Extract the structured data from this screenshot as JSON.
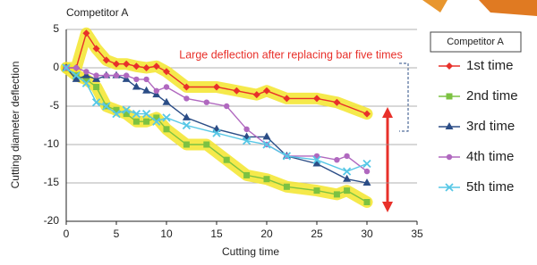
{
  "chart_data": {
    "type": "line",
    "title": "Competitor A",
    "annotation": "Large deflection after replacing bar five times",
    "legend_title": "Competitor A",
    "x_label": "Cutting time",
    "y_label": "Cutting diameter deflection",
    "xlim": [
      0,
      35
    ],
    "xticks": [
      0,
      5,
      10,
      15,
      20,
      25,
      30,
      35
    ],
    "ylim": [
      -20,
      5
    ],
    "yticks": [
      5,
      0,
      -5,
      -10,
      -15,
      -20
    ],
    "grid": true,
    "series": [
      {
        "name": "1st time",
        "color": "#e8302a",
        "marker": "diamond",
        "highlight": "#f3e52c",
        "x": [
          0,
          1,
          2,
          3,
          4,
          5,
          6,
          7,
          8,
          9,
          10,
          12,
          15,
          17,
          19,
          20,
          22,
          25,
          27,
          30
        ],
        "values": [
          0,
          0,
          4.5,
          2.5,
          1,
          0.5,
          0.5,
          0.2,
          0,
          0.2,
          -0.5,
          -2.5,
          -2.5,
          -3,
          -3.5,
          -3,
          -4,
          -4,
          -4.5,
          -6
        ]
      },
      {
        "name": "2nd time",
        "color": "#7cc242",
        "marker": "square",
        "highlight": "#f3e52c",
        "x": [
          0,
          1,
          2,
          3,
          4,
          5,
          6,
          7,
          8,
          9,
          10,
          12,
          14,
          16,
          18,
          20,
          22,
          25,
          27,
          28,
          30
        ],
        "values": [
          0,
          -1,
          -1.5,
          -2.5,
          -5,
          -5.5,
          -6,
          -7,
          -7,
          -6.5,
          -8,
          -10,
          -10,
          -12,
          -14,
          -14.5,
          -15.5,
          -16,
          -16.5,
          -16,
          -17.5
        ]
      },
      {
        "name": "3rd time",
        "color": "#2b4d86",
        "marker": "triangle",
        "x": [
          0,
          1,
          2,
          3,
          4,
          5,
          6,
          7,
          8,
          9,
          10,
          12,
          15,
          18,
          20,
          22,
          25,
          28,
          30
        ],
        "values": [
          0,
          -1.5,
          -1,
          -1.5,
          -1,
          -1,
          -1.5,
          -2.5,
          -3,
          -3.5,
          -4.5,
          -6.5,
          -8,
          -9,
          -9,
          -11.5,
          -12.5,
          -14.5,
          -15
        ]
      },
      {
        "name": "4th time",
        "color": "#b068bf",
        "marker": "circle",
        "x": [
          0,
          1,
          2,
          3,
          4,
          5,
          6,
          7,
          8,
          9,
          10,
          12,
          14,
          16,
          18,
          20,
          22,
          25,
          27,
          28,
          30
        ],
        "values": [
          0,
          0,
          -0.5,
          -1,
          -1,
          -1,
          -1,
          -1.5,
          -1.5,
          -3,
          -2.5,
          -4,
          -4.5,
          -5,
          -8,
          -10,
          -11.5,
          -11.5,
          -12,
          -11.5,
          -13.5
        ]
      },
      {
        "name": "5th time",
        "color": "#56c7e6",
        "marker": "x",
        "x": [
          0,
          1,
          2,
          3,
          4,
          5,
          6,
          7,
          8,
          9,
          10,
          12,
          15,
          18,
          20,
          22,
          25,
          28,
          30
        ],
        "values": [
          0,
          -1,
          -2,
          -4.5,
          -5,
          -6,
          -5.5,
          -6,
          -6,
          -7,
          -6.5,
          -7.5,
          -8.5,
          -9.5,
          -10,
          -11.5,
          -12,
          -13.5,
          -12.5
        ]
      }
    ]
  }
}
